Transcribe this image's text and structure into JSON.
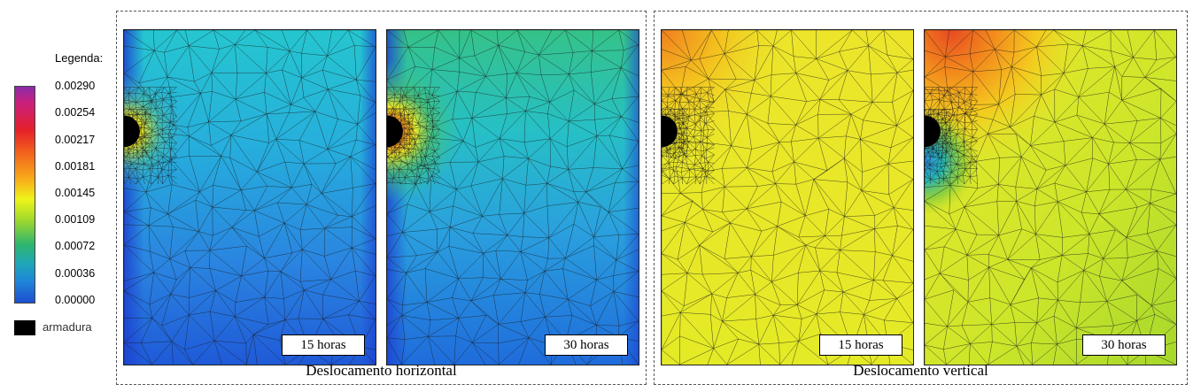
{
  "legend": {
    "title": "Legenda:",
    "ticks": [
      "0.00290",
      "0.00254",
      "0.00217",
      "0.00181",
      "0.00145",
      "0.00109",
      "0.00072",
      "0.00036",
      "0.00000"
    ],
    "armadura_label": "armadura"
  },
  "groups": [
    {
      "label": "Deslocamento horizontal",
      "panels": [
        {
          "time": "15 horas"
        },
        {
          "time": "30 horas"
        }
      ]
    },
    {
      "label": "Deslocamento vertical",
      "panels": [
        {
          "time": "15 horas"
        },
        {
          "time": "30 horas"
        }
      ]
    }
  ],
  "colors": {
    "armadura": "#000000",
    "mesh_line": "#1a1a1a"
  }
}
